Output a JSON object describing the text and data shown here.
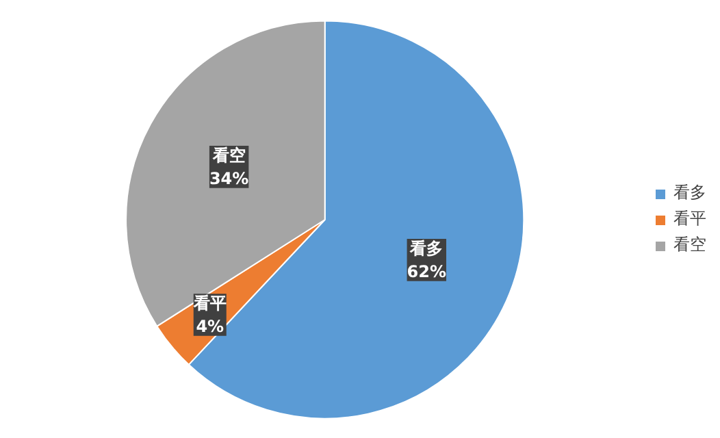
{
  "chart_data": {
    "type": "pie",
    "categories": [
      "看多",
      "看平",
      "看空"
    ],
    "values": [
      62,
      4,
      34
    ],
    "value_labels": [
      "62%",
      "4%",
      "34%"
    ],
    "colors": [
      "#5b9bd5",
      "#ed7d31",
      "#a5a5a5"
    ],
    "legend": "right"
  }
}
